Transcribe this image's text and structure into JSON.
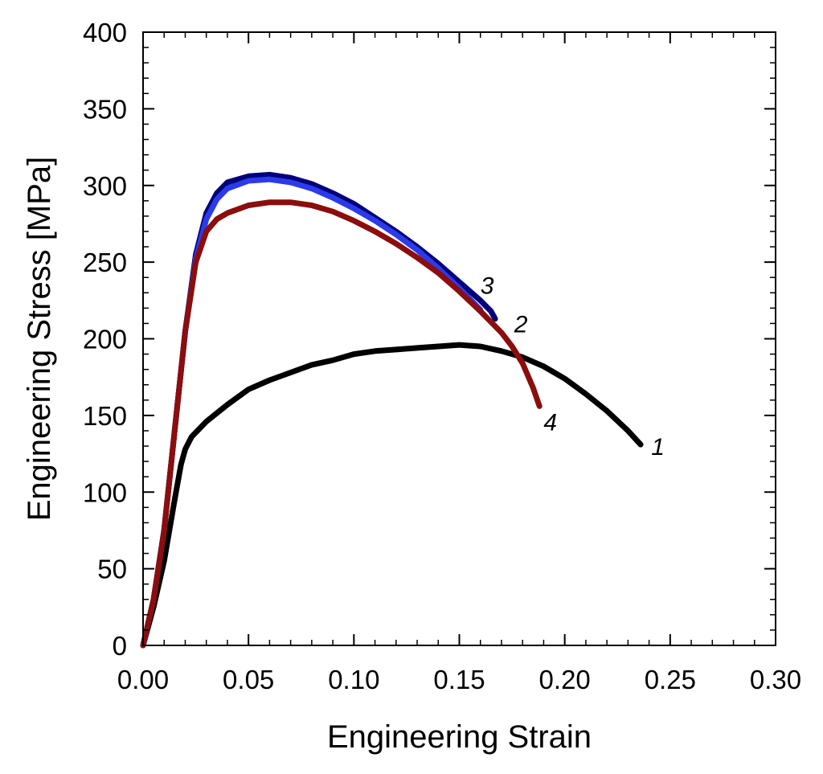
{
  "chart_data": {
    "type": "line",
    "title": "",
    "xlabel": "Engineering Strain",
    "ylabel": "Engineering Stress [MPa]",
    "xlim": [
      0,
      0.3
    ],
    "ylim": [
      0,
      400
    ],
    "xticks": [
      0,
      0.05,
      0.1,
      0.15,
      0.2,
      0.25,
      0.3
    ],
    "xtick_labels": [
      "0.00",
      "0.05",
      "0.10",
      "0.15",
      "0.20",
      "0.25",
      "0.30"
    ],
    "yticks": [
      0,
      50,
      100,
      150,
      200,
      250,
      300,
      350,
      400
    ],
    "ytick_labels": [
      "0",
      "50",
      "100",
      "150",
      "200",
      "250",
      "300",
      "350",
      "400"
    ],
    "grid": false,
    "series": [
      {
        "name": "1",
        "color": "#000000",
        "label_at": [
          0.241,
          130
        ],
        "x": [
          0,
          0.005,
          0.01,
          0.015,
          0.018,
          0.02,
          0.023,
          0.03,
          0.04,
          0.05,
          0.06,
          0.07,
          0.08,
          0.09,
          0.1,
          0.11,
          0.12,
          0.13,
          0.14,
          0.15,
          0.16,
          0.17,
          0.18,
          0.19,
          0.2,
          0.21,
          0.22,
          0.23,
          0.236
        ],
        "y": [
          0,
          25,
          55,
          95,
          118,
          128,
          136,
          146,
          157,
          167,
          173,
          178,
          183,
          186,
          190,
          192,
          193,
          194,
          195,
          196,
          195,
          192,
          188,
          182,
          174,
          164,
          153,
          140,
          131
        ]
      },
      {
        "name": "2",
        "color": "#00007a",
        "label_at": [
          0.176,
          210
        ],
        "x": [
          0,
          0.005,
          0.01,
          0.015,
          0.02,
          0.025,
          0.03,
          0.035,
          0.04,
          0.05,
          0.06,
          0.07,
          0.08,
          0.09,
          0.1,
          0.11,
          0.12,
          0.13,
          0.14,
          0.15,
          0.16,
          0.165,
          0.167
        ],
        "y": [
          0,
          30,
          75,
          140,
          205,
          255,
          282,
          295,
          302,
          306,
          307,
          305,
          301,
          295,
          288,
          279,
          270,
          260,
          249,
          237,
          225,
          218,
          213
        ]
      },
      {
        "name": "3",
        "color": "#2b3bea",
        "label_at": [
          0.16,
          235
        ],
        "x": [
          0,
          0.005,
          0.01,
          0.015,
          0.02,
          0.025,
          0.03,
          0.035,
          0.04,
          0.05,
          0.06,
          0.07,
          0.08,
          0.09,
          0.1,
          0.11,
          0.12,
          0.13,
          0.14,
          0.15,
          0.155,
          0.16
        ],
        "y": [
          0,
          30,
          75,
          140,
          205,
          252,
          278,
          291,
          298,
          303,
          304,
          302,
          298,
          292,
          285,
          277,
          268,
          258,
          246,
          233,
          226,
          219
        ]
      },
      {
        "name": "4",
        "color": "#8b0d0d",
        "label_at": [
          0.19,
          146
        ],
        "x": [
          0,
          0.005,
          0.01,
          0.015,
          0.02,
          0.025,
          0.03,
          0.035,
          0.04,
          0.05,
          0.06,
          0.07,
          0.08,
          0.09,
          0.1,
          0.11,
          0.12,
          0.13,
          0.14,
          0.15,
          0.16,
          0.17,
          0.175,
          0.18,
          0.185,
          0.188
        ],
        "y": [
          0,
          30,
          75,
          140,
          205,
          250,
          270,
          278,
          282,
          287,
          289,
          289,
          287,
          283,
          277,
          270,
          262,
          253,
          243,
          231,
          218,
          204,
          195,
          184,
          168,
          156
        ]
      }
    ]
  }
}
